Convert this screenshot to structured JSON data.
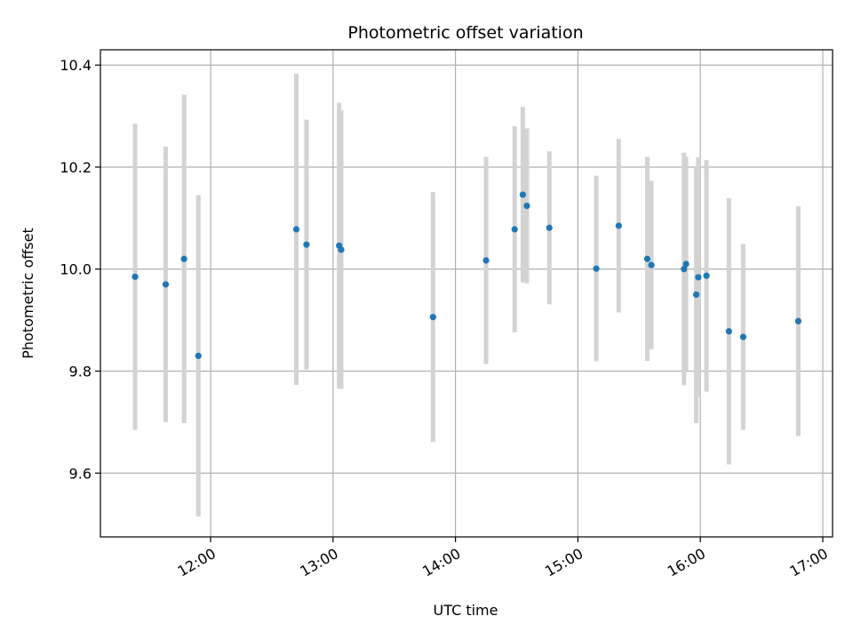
{
  "chart_data": {
    "type": "scatter",
    "title": "Photometric offset variation",
    "xlabel": "UTC time",
    "ylabel": "Photometric offset",
    "x_tick_labels": [
      "12:00",
      "13:00",
      "14:00",
      "15:00",
      "16:00",
      "17:00"
    ],
    "x_ticks_hours": [
      12,
      13,
      14,
      15,
      16,
      17
    ],
    "y_ticks": [
      9.6,
      9.8,
      10.0,
      10.2,
      10.4
    ],
    "y_tick_labels": [
      "9.6",
      "9.8",
      "10.0",
      "10.2",
      "10.4"
    ],
    "xlim_hours": [
      11.1,
      17.08
    ],
    "ylim": [
      9.475,
      10.43
    ],
    "grid": true,
    "colors": {
      "point": "#1f77b4",
      "errorbar": "#d3d3d3",
      "grid": "#b0b0b0"
    },
    "points": [
      {
        "t": "11:23",
        "y": 9.985,
        "err": 0.3
      },
      {
        "t": "11:38",
        "y": 9.97,
        "err": 0.27
      },
      {
        "t": "11:47",
        "y": 10.02,
        "err": 0.322
      },
      {
        "t": "11:54",
        "y": 9.83,
        "err": 0.315
      },
      {
        "t": "12:42",
        "y": 10.078,
        "err": 0.305
      },
      {
        "t": "12:47",
        "y": 10.048,
        "err": 0.245
      },
      {
        "t": "13:03",
        "y": 10.046,
        "err": 0.28
      },
      {
        "t": "13:04",
        "y": 10.038,
        "err": 0.273
      },
      {
        "t": "13:49",
        "y": 9.906,
        "err": 0.245
      },
      {
        "t": "14:15",
        "y": 10.017,
        "err": 0.203
      },
      {
        "t": "14:29",
        "y": 10.078,
        "err": 0.202
      },
      {
        "t": "14:33",
        "y": 10.146,
        "err": 0.172
      },
      {
        "t": "14:35",
        "y": 10.124,
        "err": 0.152
      },
      {
        "t": "14:46",
        "y": 10.081,
        "err": 0.15
      },
      {
        "t": "15:09",
        "y": 10.001,
        "err": 0.182
      },
      {
        "t": "15:20",
        "y": 10.085,
        "err": 0.17
      },
      {
        "t": "15:34",
        "y": 10.02,
        "err": 0.2
      },
      {
        "t": "15:36",
        "y": 10.008,
        "err": 0.165
      },
      {
        "t": "15:52",
        "y": 10.0,
        "err": 0.228
      },
      {
        "t": "15:53",
        "y": 10.01,
        "err": 0.21
      },
      {
        "t": "15:58",
        "y": 9.95,
        "err": 0.252
      },
      {
        "t": "15:59",
        "y": 9.984,
        "err": 0.235
      },
      {
        "t": "16:03",
        "y": 9.987,
        "err": 0.227
      },
      {
        "t": "16:14",
        "y": 9.878,
        "err": 0.261
      },
      {
        "t": "16:21",
        "y": 9.867,
        "err": 0.182
      },
      {
        "t": "16:48",
        "y": 9.898,
        "err": 0.225
      }
    ]
  }
}
